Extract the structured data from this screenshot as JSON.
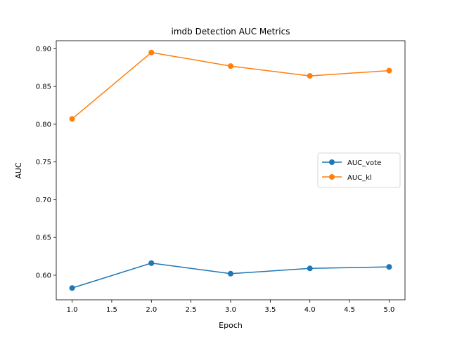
{
  "chart_data": {
    "type": "line",
    "title": "imdb Detection AUC Metrics",
    "xlabel": "Epoch",
    "ylabel": "AUC",
    "x": [
      1.0,
      2.0,
      3.0,
      4.0,
      5.0
    ],
    "series": [
      {
        "name": "AUC_vote",
        "values": [
          0.583,
          0.616,
          0.602,
          0.609,
          0.611
        ],
        "color": "#1f77b4",
        "marker": "circle"
      },
      {
        "name": "AUC_kl",
        "values": [
          0.807,
          0.895,
          0.877,
          0.864,
          0.871
        ],
        "color": "#ff7f0e",
        "marker": "circle"
      }
    ],
    "xlim": [
      0.8,
      5.2
    ],
    "ylim": [
      0.5674,
      0.9106
    ],
    "xticks": [
      "1.0",
      "1.5",
      "2.0",
      "2.5",
      "3.0",
      "3.5",
      "4.0",
      "4.5",
      "5.0"
    ],
    "yticks": [
      "0.60",
      "0.65",
      "0.70",
      "0.75",
      "0.80",
      "0.85",
      "0.90"
    ],
    "grid": false,
    "legend_position": "center-right"
  }
}
